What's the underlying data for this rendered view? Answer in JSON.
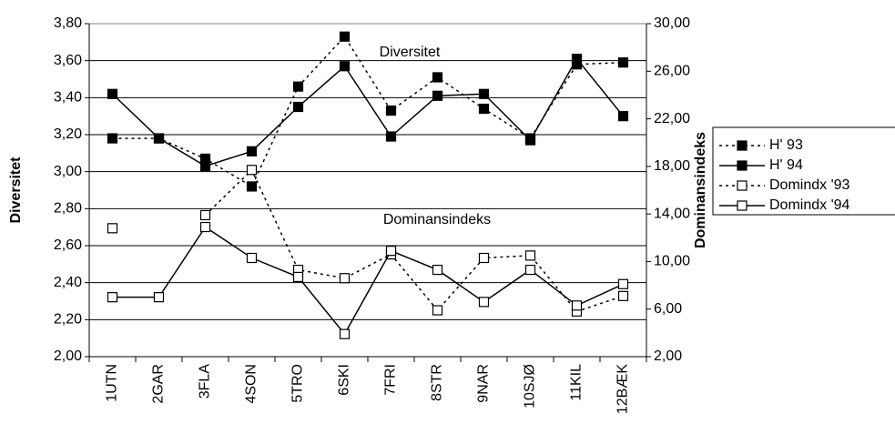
{
  "chart_data": {
    "type": "line",
    "y_label": "Diversitet",
    "y2_label": "Dominansindeks",
    "annotations": [
      "Diversitet",
      "Dominansindeks"
    ],
    "categories": [
      "1UTN",
      "2GAR",
      "3FLA",
      "4SON",
      "5TRO",
      "6SKI",
      "7FRI",
      "8STR",
      "9NAR",
      "10SJØ",
      "11KIL",
      "12BÆK"
    ],
    "series": [
      {
        "name": "H' 93",
        "color": "#000000",
        "line_style": "dotted",
        "marker": "filled",
        "values": [
          3.18,
          3.18,
          3.07,
          2.92,
          3.46,
          3.73,
          3.33,
          3.51,
          3.34,
          3.18,
          3.58,
          3.59
        ]
      },
      {
        "name": "H' 94",
        "color": "#000000",
        "line_style": "solid",
        "marker": "filled",
        "values": [
          3.42,
          3.18,
          3.03,
          3.11,
          3.35,
          3.57,
          3.19,
          3.41,
          3.42,
          3.17,
          3.61,
          3.3
        ]
      },
      {
        "name": "Domindx '93",
        "color": "#000000",
        "line_style": "dotted",
        "marker": "open",
        "axis": "y2",
        "values": [
          12.8,
          null,
          13.9,
          17.7,
          9.3,
          8.6,
          10.6,
          5.9,
          10.3,
          10.5,
          5.8,
          7.1
        ]
      },
      {
        "name": "Domindx '94",
        "color": "#000000",
        "line_style": "solid",
        "marker": "open",
        "axis": "y2",
        "values": [
          7.0,
          7.0,
          12.9,
          10.3,
          8.7,
          3.9,
          10.9,
          9.3,
          6.6,
          9.3,
          6.3,
          8.1
        ]
      }
    ],
    "ylim": [
      2,
      3.8
    ],
    "yticks": [
      {
        "value": 2,
        "label": "2,00"
      },
      {
        "value": 2.2,
        "label": "2,20"
      },
      {
        "value": 2.4,
        "label": "2,40"
      },
      {
        "value": 2.6,
        "label": "2,60"
      },
      {
        "value": 2.8,
        "label": "2,80"
      },
      {
        "value": 3,
        "label": "3,00"
      },
      {
        "value": 3.2,
        "label": "3,20"
      },
      {
        "value": 3.4,
        "label": "3,40"
      },
      {
        "value": 3.6,
        "label": "3,60"
      },
      {
        "value": 3.8,
        "label": "3,80"
      }
    ],
    "y2lim": [
      2,
      30
    ],
    "y2ticks": [
      {
        "value": 2,
        "label": "2,00"
      },
      {
        "value": 6,
        "label": "6,00"
      },
      {
        "value": 10,
        "label": "10,00"
      },
      {
        "value": 14,
        "label": "14,00"
      },
      {
        "value": 18,
        "label": "18,00"
      },
      {
        "value": 22,
        "label": "22,00"
      },
      {
        "value": 26,
        "label": "26,00"
      },
      {
        "value": 30,
        "label": "30,00"
      }
    ],
    "grid": true,
    "legend": "right"
  }
}
